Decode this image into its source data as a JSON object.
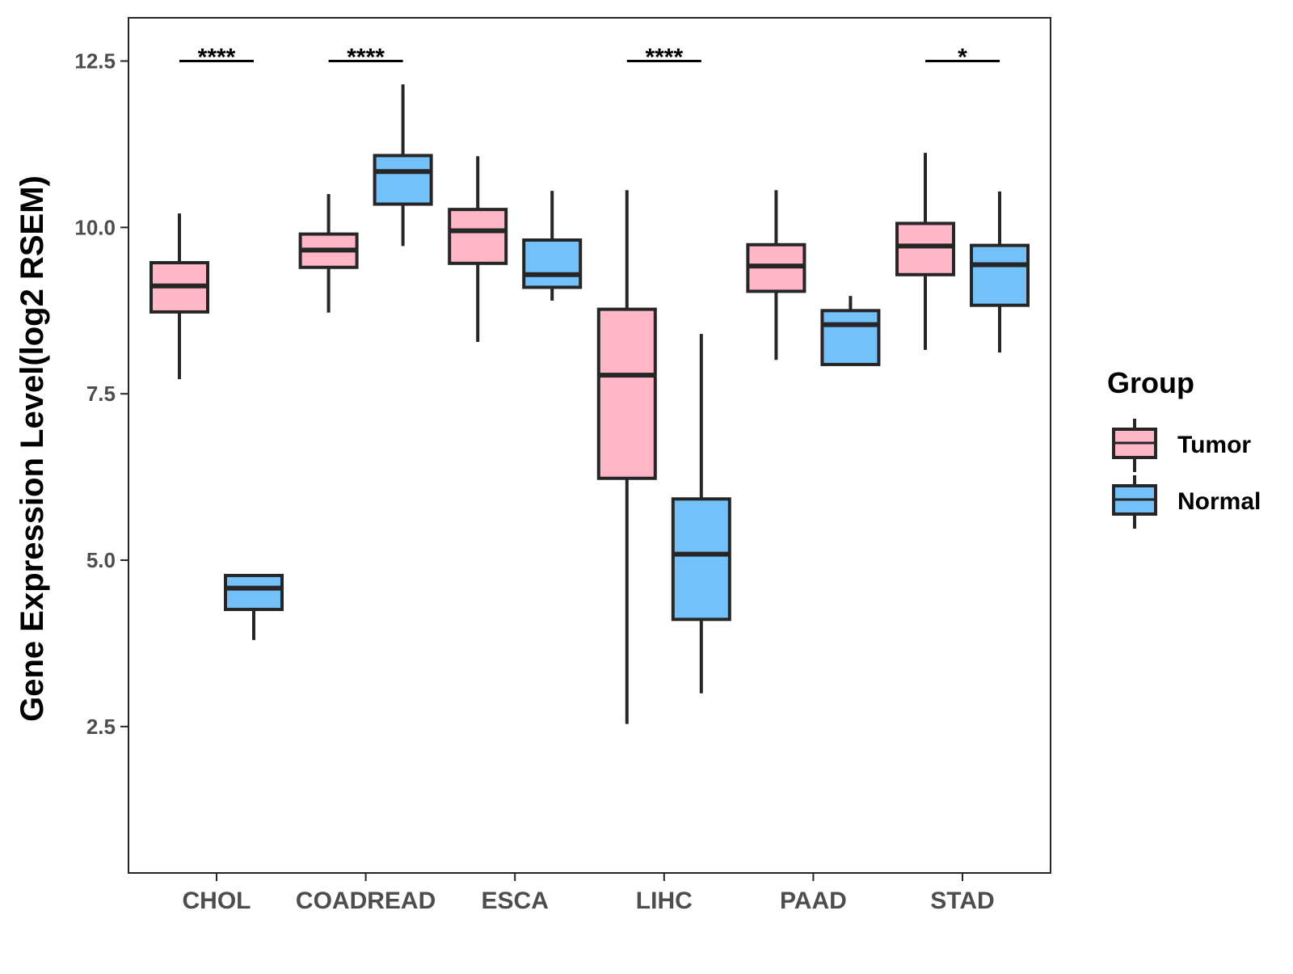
{
  "chart_data": {
    "type": "boxplot",
    "title": "",
    "xlabel": "",
    "ylabel": "Gene Expression Level(log2 RSEM)",
    "ylim": [
      0.3,
      13.15
    ],
    "yticks": [
      2.5,
      5.0,
      7.5,
      10.0,
      12.5
    ],
    "ytick_labels": [
      "2.5",
      "5.0",
      "7.5",
      "10.0",
      "12.5"
    ],
    "grid": false,
    "categories": [
      "CHOL",
      "COADREAD",
      "ESCA",
      "LIHC",
      "PAAD",
      "STAD"
    ],
    "legend": {
      "title": "Group",
      "position": "right",
      "items": [
        {
          "name": "Tumor",
          "color": "#FFB6C6"
        },
        {
          "name": "Normal",
          "color": "#74C0F8"
        }
      ]
    },
    "series": [
      {
        "name": "Tumor",
        "color": "#FFB6C6",
        "boxes": [
          {
            "category": "CHOL",
            "whisker_low": 7.72,
            "q1": 8.73,
            "median": 9.12,
            "q3": 9.47,
            "whisker_high": 10.21
          },
          {
            "category": "COADREAD",
            "whisker_low": 8.72,
            "q1": 9.4,
            "median": 9.66,
            "q3": 9.9,
            "whisker_high": 10.5
          },
          {
            "category": "ESCA",
            "whisker_low": 8.28,
            "q1": 9.46,
            "median": 9.95,
            "q3": 10.27,
            "whisker_high": 11.07
          },
          {
            "category": "LIHC",
            "whisker_low": 2.54,
            "q1": 6.23,
            "median": 7.78,
            "q3": 8.77,
            "whisker_high": 10.56
          },
          {
            "category": "PAAD",
            "whisker_low": 8.01,
            "q1": 9.04,
            "median": 9.42,
            "q3": 9.74,
            "whisker_high": 10.56
          },
          {
            "category": "STAD",
            "whisker_low": 8.16,
            "q1": 9.29,
            "median": 9.72,
            "q3": 10.06,
            "whisker_high": 11.12
          }
        ]
      },
      {
        "name": "Normal",
        "color": "#74C0F8",
        "boxes": [
          {
            "category": "CHOL",
            "whisker_low": 3.8,
            "q1": 4.26,
            "median": 4.58,
            "q3": 4.77,
            "whisker_high": 4.77
          },
          {
            "category": "COADREAD",
            "whisker_low": 9.72,
            "q1": 10.35,
            "median": 10.84,
            "q3": 11.08,
            "whisker_high": 12.15
          },
          {
            "category": "ESCA",
            "whisker_low": 8.9,
            "q1": 9.1,
            "median": 9.29,
            "q3": 9.81,
            "whisker_high": 10.55
          },
          {
            "category": "LIHC",
            "whisker_low": 3.0,
            "q1": 4.11,
            "median": 5.09,
            "q3": 5.92,
            "whisker_high": 8.4
          },
          {
            "category": "PAAD",
            "whisker_low": 7.94,
            "q1": 7.94,
            "median": 8.54,
            "q3": 8.75,
            "whisker_high": 8.97
          },
          {
            "category": "STAD",
            "whisker_low": 8.12,
            "q1": 8.83,
            "median": 9.44,
            "q3": 9.73,
            "whisker_high": 10.54
          }
        ]
      }
    ],
    "significance": [
      {
        "category": "CHOL",
        "label": "****",
        "y": 12.5
      },
      {
        "category": "COADREAD",
        "label": "****",
        "y": 12.5
      },
      {
        "category": "LIHC",
        "label": "****",
        "y": 12.5
      },
      {
        "category": "STAD",
        "label": "*",
        "y": 12.5
      }
    ]
  }
}
